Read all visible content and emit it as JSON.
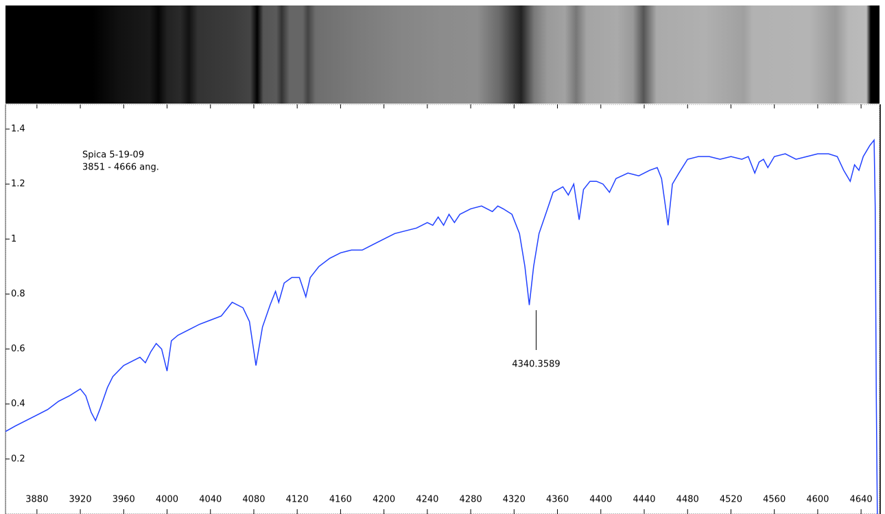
{
  "chart_data": {
    "type": "line",
    "annotations": [
      "Spica 5-19-09",
      "3851 - 4666 ang."
    ],
    "marker": {
      "label": "4340.3589",
      "x": 4340.3589
    },
    "color": "#2040ff",
    "xlim": [
      3851,
      4657
    ],
    "ylim": [
      0,
      1.49
    ],
    "xticks": [
      3880,
      3920,
      3960,
      4000,
      4040,
      4080,
      4120,
      4160,
      4200,
      4240,
      4280,
      4320,
      4360,
      4400,
      4440,
      4480,
      4520,
      4560,
      4600,
      4640
    ],
    "yticks": [
      0.2,
      0.4,
      0.6,
      0.8,
      1,
      1.2,
      1.4
    ],
    "x": [
      3851,
      3860,
      3870,
      3880,
      3890,
      3900,
      3910,
      3920,
      3925,
      3930,
      3934,
      3938,
      3945,
      3950,
      3960,
      3970,
      3975,
      3980,
      3985,
      3990,
      3995,
      4000,
      4004,
      4010,
      4020,
      4030,
      4040,
      4050,
      4060,
      4070,
      4076,
      4082,
      4088,
      4095,
      4100,
      4103,
      4108,
      4115,
      4122,
      4128,
      4132,
      4140,
      4150,
      4160,
      4170,
      4180,
      4190,
      4200,
      4210,
      4220,
      4230,
      4240,
      4245,
      4250,
      4255,
      4260,
      4265,
      4270,
      4280,
      4290,
      4300,
      4305,
      4310,
      4318,
      4325,
      4330,
      4334,
      4338,
      4343,
      4350,
      4356,
      4365,
      4370,
      4375,
      4380,
      4384,
      4390,
      4396,
      4402,
      4408,
      4414,
      4425,
      4435,
      4445,
      4452,
      4456,
      4462,
      4466,
      4472,
      4480,
      4490,
      4500,
      4510,
      4520,
      4530,
      4536,
      4542,
      4546,
      4550,
      4554,
      4560,
      4570,
      4580,
      4590,
      4600,
      4610,
      4618,
      4624,
      4630,
      4634,
      4638,
      4642,
      4648,
      4652,
      4653,
      4654,
      4655
    ],
    "values": [
      0.3,
      0.32,
      0.34,
      0.36,
      0.38,
      0.41,
      0.43,
      0.455,
      0.43,
      0.37,
      0.34,
      0.38,
      0.46,
      0.5,
      0.54,
      0.56,
      0.57,
      0.55,
      0.59,
      0.62,
      0.6,
      0.52,
      0.63,
      0.65,
      0.67,
      0.69,
      0.705,
      0.72,
      0.77,
      0.75,
      0.7,
      0.54,
      0.68,
      0.76,
      0.81,
      0.77,
      0.84,
      0.86,
      0.86,
      0.79,
      0.86,
      0.9,
      0.93,
      0.95,
      0.96,
      0.96,
      0.98,
      1.0,
      1.02,
      1.03,
      1.04,
      1.06,
      1.05,
      1.08,
      1.05,
      1.09,
      1.06,
      1.09,
      1.11,
      1.12,
      1.1,
      1.12,
      1.11,
      1.09,
      1.02,
      0.9,
      0.76,
      0.9,
      1.02,
      1.1,
      1.17,
      1.19,
      1.16,
      1.2,
      1.07,
      1.18,
      1.21,
      1.21,
      1.2,
      1.17,
      1.22,
      1.24,
      1.23,
      1.25,
      1.26,
      1.22,
      1.05,
      1.2,
      1.24,
      1.29,
      1.3,
      1.3,
      1.29,
      1.3,
      1.29,
      1.3,
      1.24,
      1.28,
      1.29,
      1.26,
      1.3,
      1.31,
      1.29,
      1.3,
      1.31,
      1.31,
      1.3,
      1.25,
      1.21,
      1.27,
      1.25,
      1.3,
      1.34,
      1.36,
      1.12,
      0.43,
      0
    ]
  }
}
